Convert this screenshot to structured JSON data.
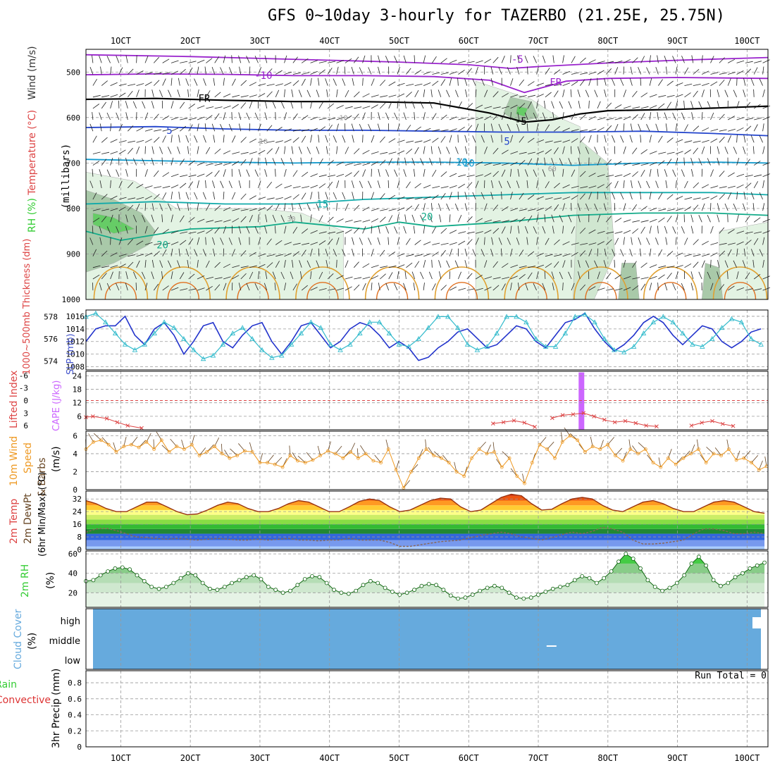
{
  "title": "GFS 0~10day 3-hourly for TAZERBO (21.25E, 25.75N)",
  "run_total": "Run Total = 0",
  "x_ticks": [
    "1OCT",
    "2OCT",
    "3OCT",
    "4OCT",
    "5OCT",
    "6OCT",
    "7OCT",
    "8OCT",
    "9OCT",
    "10OCT"
  ],
  "chart_data": [
    {
      "type": "area",
      "panel": "upper-air",
      "ylabel": "(millibars)",
      "ylabel_parts": [
        {
          "text": "RH (%)",
          "color": "#33cc33"
        },
        {
          "text": "Temperature (°C)",
          "color": "#dd4444"
        },
        {
          "text": "Wind (m/s)",
          "color": "#333333"
        }
      ],
      "y_ticks": [
        500,
        600,
        700,
        800,
        900,
        1000
      ],
      "ylim": [
        450,
        1000
      ],
      "x_days": [
        0.5,
        10.3
      ],
      "contour_labels": [
        "-10",
        "-5",
        "FR",
        "FR",
        "-5",
        "5",
        "5",
        "10",
        "10",
        "15",
        "20",
        "20",
        "10",
        "10",
        "30",
        "60"
      ],
      "isotherms": [
        {
          "label": "-10",
          "color": "#9922cc",
          "x": [
            0.5,
            2,
            3,
            4,
            5,
            6,
            6.6,
            7,
            8,
            9,
            10.3
          ],
          "y": [
            462,
            466,
            470,
            474,
            478,
            484,
            492,
            488,
            480,
            474,
            468
          ]
        },
        {
          "label": "-5",
          "color": "#9922cc",
          "x": [
            0.5,
            1.5,
            2.5,
            3.5,
            4.5,
            5.5,
            6.3,
            6.8,
            7.4,
            8,
            9,
            10.3
          ],
          "y": [
            506,
            504,
            505,
            508,
            508,
            510,
            518,
            545,
            520,
            514,
            512,
            514
          ]
        },
        {
          "label": "FR",
          "color": "#000000",
          "x": [
            0.5,
            1.5,
            2.5,
            3.5,
            4.5,
            5.5,
            6.3,
            6.8,
            7.2,
            7.6,
            8,
            9,
            10.3
          ],
          "y": [
            560,
            558,
            562,
            565,
            565,
            568,
            590,
            610,
            605,
            592,
            585,
            582,
            575
          ]
        },
        {
          "label": "5",
          "color": "#2244cc",
          "x": [
            0.5,
            1.5,
            2.5,
            3.5,
            4.5,
            5.5,
            6.5,
            7.5,
            8.5,
            9.5,
            10.3
          ],
          "y": [
            622,
            620,
            625,
            628,
            628,
            630,
            632,
            632,
            630,
            635,
            640
          ]
        },
        {
          "label": "10",
          "color": "#1199cc",
          "x": [
            0.5,
            1.5,
            2.5,
            3.5,
            4.5,
            5.5,
            6.5,
            7.5,
            8.5,
            9.5,
            10.3
          ],
          "y": [
            692,
            695,
            698,
            700,
            698,
            698,
            700,
            705,
            700,
            698,
            700
          ]
        },
        {
          "label": "15",
          "color": "#11aaaa",
          "x": [
            0.5,
            1.5,
            2.5,
            3.5,
            4.5,
            5.5,
            6.5,
            7.5,
            8.5,
            9.5,
            10.3
          ],
          "y": [
            790,
            785,
            790,
            790,
            780,
            775,
            770,
            765,
            765,
            765,
            770
          ]
        },
        {
          "label": "20",
          "color": "#11aa88",
          "x": [
            0.5,
            1,
            2,
            3,
            3.5,
            4.5,
            5,
            5.5,
            6.5,
            7.5,
            8.5,
            9.5,
            10.3
          ],
          "y": [
            850,
            870,
            845,
            840,
            830,
            845,
            830,
            840,
            830,
            815,
            810,
            810,
            815
          ]
        }
      ]
    },
    {
      "type": "line",
      "panel": "slp-thickness",
      "ylabel": "1000~500mb Thickness (dm)",
      "ylabel2": "SLP (mb)",
      "left_ticks": [
        574,
        576,
        578
      ],
      "right_ticks": [
        1008,
        1010,
        1012,
        1014,
        1016
      ],
      "left_lim": [
        573.2,
        578.6
      ],
      "right_lim": [
        1007.5,
        1017
      ],
      "series": [
        {
          "name": "SLP",
          "color": "#2233cc",
          "axis": "right",
          "values": [
            1012,
            1014,
            1014.5,
            1014.5,
            1016,
            1013,
            1011.5,
            1014,
            1015,
            1013,
            1010,
            1012,
            1014.5,
            1015,
            1012,
            1011,
            1013,
            1014.5,
            1015,
            1012,
            1010,
            1012,
            1014.5,
            1015,
            1013,
            1011,
            1012,
            1014,
            1015,
            1014.5,
            1013,
            1011,
            1012,
            1011,
            1009,
            1009.5,
            1011,
            1012,
            1013.5,
            1014,
            1012.5,
            1011,
            1011.5,
            1013,
            1014.5,
            1014,
            1012,
            1011,
            1013,
            1015,
            1015.5,
            1016.5,
            1014,
            1012,
            1010.5,
            1011.5,
            1013,
            1015,
            1016,
            1015,
            1013,
            1011.5,
            1013,
            1014.5,
            1014,
            1012,
            1011,
            1012,
            1013.5,
            1014
          ]
        },
        {
          "name": "Thickness",
          "color": "#33bbcc",
          "axis": "left",
          "values": [
            578,
            578.3,
            577.5,
            576.5,
            575.5,
            575,
            575.5,
            576.5,
            577.5,
            577,
            576,
            575,
            574.2,
            574.5,
            575.5,
            576.5,
            577,
            576,
            575,
            574.3,
            574.5,
            575.5,
            576.5,
            577.5,
            577,
            575.5,
            575,
            575.5,
            576.5,
            577.5,
            577.5,
            576.5,
            575.5,
            575.3,
            576,
            577,
            578,
            578,
            577,
            575.5,
            575,
            575.3,
            576.5,
            578,
            578,
            577.5,
            576,
            575.3,
            575.3,
            576.5,
            578,
            578.2,
            577.5,
            576,
            575,
            574.8,
            575.3,
            576.5,
            577.5,
            578,
            577.5,
            576.5,
            575.5,
            575.3,
            576,
            577,
            577.8,
            577.5,
            576,
            575.5
          ]
        }
      ]
    },
    {
      "type": "line",
      "panel": "cape-li",
      "ylabel": "Lifted Index",
      "ylabel2": "CAPE (J/kg)",
      "left_ticks": [
        "-6",
        "-3",
        "0",
        "3",
        "6"
      ],
      "right_ticks": [
        6,
        12,
        18,
        24
      ],
      "cape_lim": [
        0,
        26
      ],
      "cape_bar": {
        "day": 7.62,
        "value": 25.5,
        "color": "#cc66ff"
      },
      "li_zero_line": "#dd4444",
      "li_series": [
        {
          "x": [
            0.5,
            0.6,
            0.8,
            0.95,
            1.1,
            1.3
          ],
          "y": [
            4.0,
            3.8,
            4.3,
            5.2,
            6.0,
            6.6
          ]
        },
        {
          "x": [
            6.35,
            6.5,
            6.65,
            6.8,
            6.95
          ],
          "y": [
            5.5,
            5.2,
            4.8,
            5.3,
            6.3
          ]
        },
        {
          "x": [
            7.2,
            7.35,
            7.5,
            7.65,
            7.8,
            7.95,
            8.1,
            8.25,
            8.4,
            8.55,
            8.7
          ],
          "y": [
            4.2,
            3.5,
            3.3,
            3.0,
            3.8,
            4.6,
            5.2,
            4.9,
            5.4,
            6.0,
            6.2
          ]
        },
        {
          "x": [
            9.2,
            9.35,
            9.5,
            9.65,
            9.8
          ],
          "y": [
            6.0,
            5.3,
            4.9,
            5.6,
            6.1
          ]
        }
      ]
    },
    {
      "type": "line",
      "panel": "wind10m",
      "ylabel": "10m Wind Speed & Barbs (m/s)",
      "y_ticks": [
        0,
        2,
        4,
        6
      ],
      "ylim": [
        0,
        6.5
      ],
      "series": [
        {
          "name": "Speed",
          "color": "#ee9922",
          "values": [
            4.5,
            5.3,
            5.5,
            5.0,
            4.2,
            4.8,
            5.0,
            4.7,
            5.3,
            4.5,
            5.5,
            4.2,
            4.8,
            4.5,
            5.0,
            3.8,
            4.2,
            4.8,
            4.0,
            3.5,
            3.8,
            4.3,
            4.2,
            3.0,
            3.0,
            2.8,
            2.5,
            3.8,
            3.2,
            3.0,
            3.3,
            3.8,
            4.3,
            4.0,
            3.5,
            4.2,
            3.5,
            4.0,
            3.2,
            3.0,
            4.5,
            2.2,
            0.2,
            2.0,
            3.5,
            4.5,
            3.8,
            3.5,
            3.0,
            2.0,
            1.5,
            3.5,
            4.5,
            4.0,
            4.2,
            2.5,
            3.5,
            1.5,
            0.7,
            3.0,
            5.0,
            4.5,
            3.5,
            5.3,
            6.0,
            5.5,
            4.2,
            4.8,
            4.5,
            5.0,
            3.8,
            3.2,
            4.5,
            4.0,
            4.5,
            3.0,
            2.5,
            3.5,
            2.8,
            3.5,
            4.0,
            4.5,
            3.0,
            4.0,
            3.8,
            4.5,
            3.3,
            3.5,
            3.0,
            2.2,
            2.6
          ]
        }
      ]
    },
    {
      "type": "area",
      "panel": "temp2m",
      "ylabel": "2m Temp",
      "ylabel2": "2m DewPt",
      "ylabel3": "(6hr Min/Max) (°C)",
      "y_ticks": [
        0,
        8,
        16,
        24,
        32
      ],
      "ylim": [
        0,
        37
      ],
      "series": [
        {
          "name": "Temp",
          "color": "#993311",
          "values": [
            31,
            29,
            26,
            24,
            24,
            27,
            30,
            30,
            27,
            24,
            22,
            22.5,
            25,
            28,
            30,
            29,
            26,
            24,
            24,
            26,
            29,
            31,
            30,
            27,
            24,
            24,
            27,
            30.5,
            32,
            31,
            27,
            24,
            25,
            28,
            31,
            32.5,
            32,
            27,
            24,
            25,
            29,
            33,
            35,
            34,
            29,
            25,
            25.5,
            29,
            32,
            33,
            32,
            28,
            25,
            24,
            27,
            30,
            31,
            29,
            26,
            24,
            24,
            27,
            30,
            31,
            30,
            27,
            24,
            23
          ]
        },
        {
          "name": "DewPt",
          "color": "#886655",
          "values": [
            11,
            13,
            13.5,
            12,
            10,
            8,
            7.5,
            7,
            6.5,
            7,
            6.5,
            6,
            6.5,
            7,
            6.5,
            6,
            6,
            6.5,
            6,
            6.5,
            7,
            6,
            6,
            5.5,
            6,
            6,
            7,
            6,
            6,
            6,
            4.5,
            2,
            2,
            3,
            4,
            5,
            5.5,
            6,
            7.5,
            9,
            10,
            11,
            10,
            8,
            7,
            6,
            7.5,
            9.5,
            11,
            10,
            11.5,
            14,
            13,
            11,
            6,
            3.5,
            3.5,
            4,
            5,
            6,
            10,
            13,
            13,
            12,
            10,
            10,
            11,
            10
          ]
        }
      ]
    },
    {
      "type": "area",
      "panel": "rh2m",
      "ylabel": "2m RH (%)",
      "y_ticks": [
        20,
        40,
        60
      ],
      "ylim": [
        5,
        63
      ],
      "series": [
        {
          "name": "RH",
          "color": "#33cc33",
          "values": [
            32,
            33,
            38,
            42,
            45,
            46,
            44,
            38,
            32,
            26,
            24,
            26,
            30,
            35,
            40,
            38,
            30,
            24,
            23,
            26,
            30,
            33,
            36,
            38,
            34,
            26,
            23,
            20,
            22,
            28,
            34,
            37,
            36,
            30,
            23,
            20,
            19,
            22,
            28,
            32,
            30,
            25,
            21,
            18,
            20,
            23,
            27,
            29,
            28,
            23,
            17,
            14,
            15,
            18,
            22,
            25,
            27,
            25,
            20,
            15,
            14,
            15,
            18,
            21,
            24,
            26,
            28,
            33,
            37,
            35,
            30,
            35,
            42,
            52,
            60,
            55,
            45,
            33,
            26,
            22,
            25,
            30,
            38,
            50,
            57,
            48,
            33,
            27,
            30,
            36,
            40,
            45,
            48,
            51
          ]
        }
      ]
    },
    {
      "type": "heatmap",
      "panel": "cloud",
      "ylabel": "Cloud Cover (%)",
      "y_ticks": [
        "high",
        "middle",
        "low"
      ],
      "fill_color": "#66aadd"
    },
    {
      "type": "bar",
      "panel": "precip",
      "ylabel": "3hr Precip (mm)",
      "ylabel_parts": [
        {
          "text": "Total / Rain",
          "color": "#33cc33"
        },
        {
          "text": "Convective",
          "color": "#dd3333"
        }
      ],
      "y_ticks": [
        0,
        0.2,
        0.4,
        0.6,
        0.8
      ],
      "ylim": [
        0,
        0.95
      ],
      "values": []
    }
  ]
}
